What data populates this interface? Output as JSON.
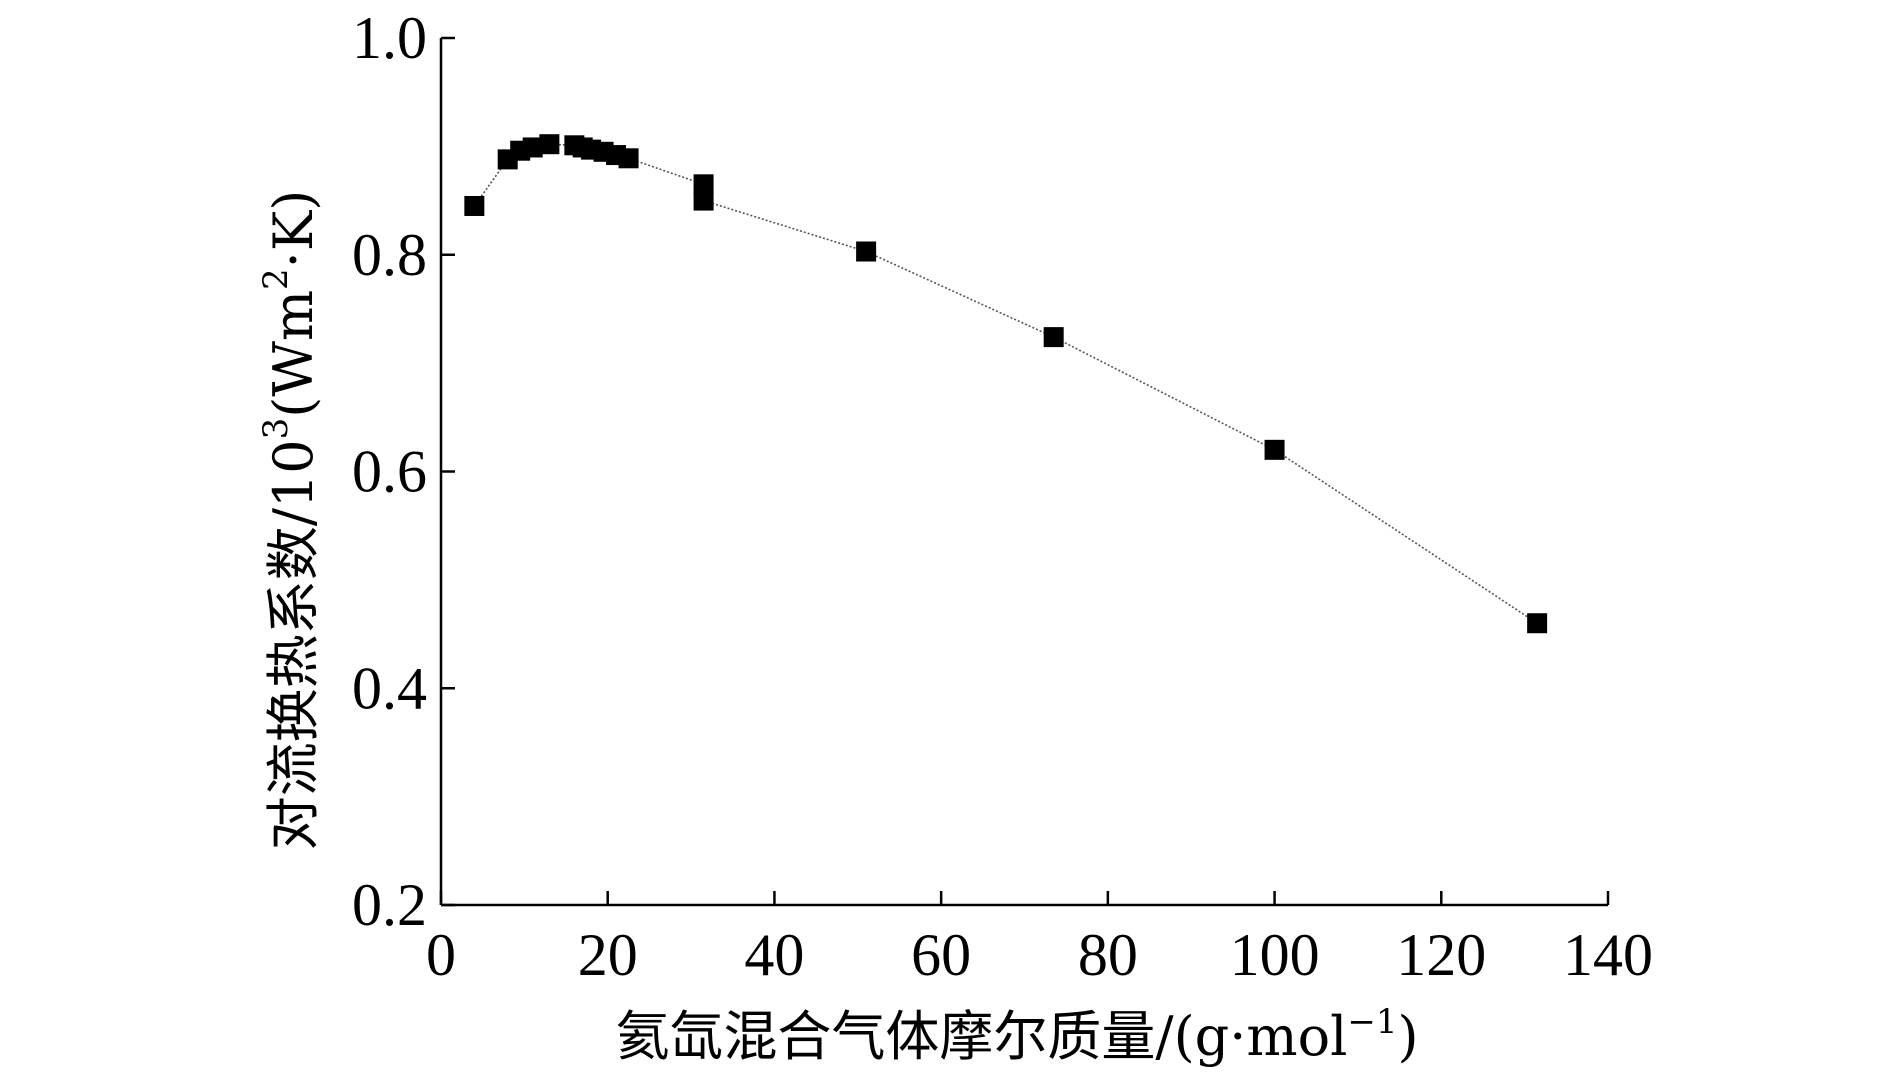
{
  "chart_data": {
    "type": "line",
    "title": "",
    "xlabel": "氦氙混合气体摩尔质量/(g·mol",
    "xlabel_sup": "−1",
    "xlabel_end": ")",
    "ylabel": "对流换热系数/10",
    "ylabel_sup1": "3",
    "ylabel_mid": "(Wm",
    "ylabel_sup2": "2",
    "ylabel_end": "·K)",
    "xlim": [
      0,
      140
    ],
    "ylim": [
      0.2,
      1.0
    ],
    "x_ticks": [
      0,
      20,
      40,
      60,
      80,
      100,
      120,
      140
    ],
    "x_tick_labels": [
      "0",
      "20",
      "40",
      "60",
      "80",
      "100",
      "120",
      "140"
    ],
    "y_ticks": [
      0.2,
      0.4,
      0.6,
      0.8,
      1.0
    ],
    "y_tick_labels": [
      "0.2",
      "0.4",
      "0.6",
      "0.8",
      "1.0"
    ],
    "grid": false,
    "legend": "none",
    "series": [
      {
        "marker": "square",
        "color": "#000000",
        "line_color": "#555555",
        "x": [
          4.0,
          8.0,
          9.5,
          11.0,
          13.0,
          16.0,
          17.0,
          18.0,
          19.5,
          21.0,
          22.5,
          31.5,
          31.5,
          51.0,
          73.5,
          100.0,
          131.5
        ],
        "y": [
          0.845,
          0.888,
          0.896,
          0.899,
          0.902,
          0.901,
          0.899,
          0.897,
          0.895,
          0.892,
          0.889,
          0.865,
          0.85,
          0.803,
          0.724,
          0.62,
          0.46
        ]
      }
    ]
  }
}
